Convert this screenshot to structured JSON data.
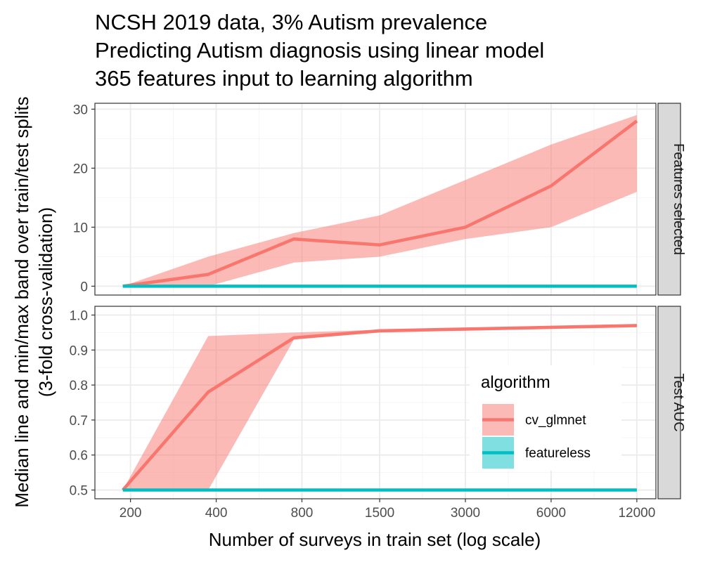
{
  "chart_data": {
    "type": "line",
    "title": [
      "NCSH 2019 data, 3% Autism prevalence",
      "Predicting Autism diagnosis using linear model",
      "365 features input to learning algorithm"
    ],
    "xlabel": "Number of surveys in train set (log scale)",
    "ylabel": [
      "Median line and min/max band over train/test splits",
      "(3-fold cross-validation)"
    ],
    "x_scale": "log",
    "x": [
      188,
      375,
      750,
      1500,
      3000,
      6000,
      12000
    ],
    "xticks": [
      200,
      400,
      800,
      1500,
      3000,
      6000,
      12000
    ],
    "xlim": [
      150,
      14000
    ],
    "grid": true,
    "legend": {
      "title": "algorithm",
      "placement": "bottom-right of lower panel",
      "entries": [
        "cv_glmnet",
        "featureless"
      ]
    },
    "colors": {
      "cv_glmnet": "#F8766D",
      "featureless": "#00BFC4",
      "strip_bg": "#D9D9D9",
      "panel_border": "#333333",
      "grid_major": "#EBEBEB"
    },
    "panels": [
      {
        "strip": "Features selected",
        "ylim": [
          -1.5,
          31
        ],
        "yticks": [
          0,
          10,
          20,
          30
        ],
        "series": [
          {
            "name": "cv_glmnet",
            "median": [
              0,
              2,
              8,
              7,
              10,
              17,
              28
            ],
            "min": [
              0,
              0,
              4,
              5,
              8,
              10,
              16
            ],
            "max": [
              0,
              5,
              9,
              12,
              18,
              24,
              29
            ]
          },
          {
            "name": "featureless",
            "median": [
              0,
              0,
              0,
              0,
              0,
              0,
              0
            ],
            "min": [
              0,
              0,
              0,
              0,
              0,
              0,
              0
            ],
            "max": [
              0,
              0,
              0,
              0,
              0,
              0,
              0
            ]
          }
        ]
      },
      {
        "strip": "Test AUC",
        "ylim": [
          0.475,
          1.025
        ],
        "yticks": [
          0.5,
          0.6,
          0.7,
          0.8,
          0.9,
          1.0
        ],
        "ytick_labels": [
          "0.5",
          "0.6",
          "0.7",
          "0.8",
          "0.9",
          "1.0"
        ],
        "series": [
          {
            "name": "cv_glmnet",
            "median": [
              0.5,
              0.78,
              0.935,
              0.955,
              0.96,
              0.965,
              0.97
            ],
            "min": [
              0.5,
              0.5,
              0.93,
              0.95,
              0.955,
              0.96,
              0.965
            ],
            "max": [
              0.5,
              0.94,
              0.95,
              0.958,
              0.962,
              0.967,
              0.972
            ]
          },
          {
            "name": "featureless",
            "median": [
              0.5,
              0.5,
              0.5,
              0.5,
              0.5,
              0.5,
              0.5
            ],
            "min": [
              0.5,
              0.5,
              0.5,
              0.5,
              0.5,
              0.5,
              0.5
            ],
            "max": [
              0.5,
              0.5,
              0.5,
              0.5,
              0.5,
              0.5,
              0.5
            ]
          }
        ]
      }
    ]
  }
}
